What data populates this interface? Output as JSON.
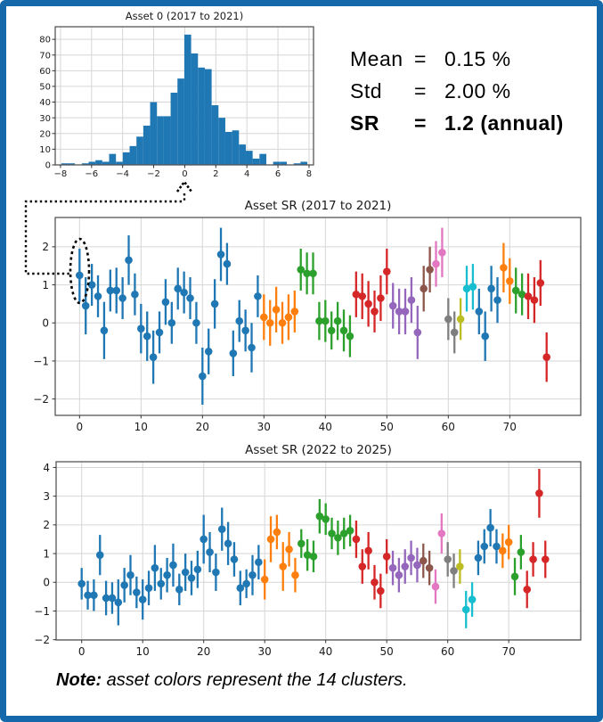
{
  "frame": {
    "border_color": "#1568a9"
  },
  "stats": {
    "rows": [
      {
        "label": "Mean",
        "eq": "=",
        "value": "0.15 %"
      },
      {
        "label": "Std",
        "eq": "=",
        "value": "2.00 %"
      },
      {
        "label": "SR",
        "eq": "=",
        "value": "1.2 (annual)"
      }
    ]
  },
  "note": {
    "prefix": "Note:",
    "text": " asset colors represent the 14 clusters."
  },
  "annotation": {
    "circled_asset": 0,
    "meaning": "dotted arrow links circled asset 0 in SR plot to its return histogram"
  },
  "cluster_palette": [
    "#1f77b4",
    "#ff7f0e",
    "#2ca02c",
    "#d62728",
    "#9467bd",
    "#8c564b",
    "#e377c2",
    "#7f7f7f",
    "#bcbd22",
    "#17becf",
    "#1f77b4",
    "#ff7f0e",
    "#2ca02c",
    "#d62728"
  ],
  "cluster_ranges": [
    [
      0,
      29
    ],
    [
      30,
      35
    ],
    [
      36,
      44
    ],
    [
      45,
      50
    ],
    [
      51,
      55
    ],
    [
      56,
      57
    ],
    [
      58,
      59
    ],
    [
      60,
      61
    ],
    [
      62,
      62
    ],
    [
      63,
      64
    ],
    [
      65,
      68
    ],
    [
      69,
      70
    ],
    [
      71,
      72
    ],
    [
      73,
      76
    ]
  ],
  "chart_data": [
    {
      "type": "bar",
      "id": "hist",
      "title": "Asset 0 (2017 to 2021)",
      "xlabel": "",
      "ylabel": "",
      "bar_color": "#1f77b4",
      "bin_start": -7.95,
      "bin_width": 0.44,
      "counts": [
        1,
        1,
        0,
        1,
        2,
        3,
        2,
        7,
        2,
        8,
        12,
        18,
        25,
        40,
        31,
        31,
        46,
        55,
        83,
        71,
        62,
        61,
        38,
        30,
        21,
        22,
        13,
        9,
        4,
        7,
        0,
        2,
        2,
        0,
        1,
        2
      ],
      "x_ticks": [
        -8,
        -6,
        -4,
        -2,
        0,
        2,
        4,
        6,
        8
      ],
      "y_ticks": [
        0,
        10,
        20,
        30,
        40,
        50,
        60,
        70,
        80
      ],
      "xlim": [
        -8.34,
        8.29
      ],
      "ylim": [
        0,
        88
      ],
      "grid": true
    },
    {
      "type": "scatter",
      "id": "sr_2017",
      "title": "Asset SR (2017 to 2021)",
      "xlabel": "",
      "ylabel": "",
      "marker": "o-with-vertical-error-bar",
      "x_is_asset_index": true,
      "x_ticks": [
        0,
        10,
        20,
        30,
        40,
        50,
        60,
        70
      ],
      "y_ticks": [
        -2,
        -1,
        0,
        1,
        2
      ],
      "xlim": [
        -3.96,
        81.55
      ],
      "ylim": [
        -2.43,
        2.77
      ],
      "grid": true,
      "points_y_err": [
        [
          1.25,
          0.7
        ],
        [
          0.45,
          0.75
        ],
        [
          1.0,
          0.55
        ],
        [
          0.7,
          0.55
        ],
        [
          -0.2,
          0.75
        ],
        [
          0.85,
          0.55
        ],
        [
          0.85,
          0.6
        ],
        [
          0.65,
          0.55
        ],
        [
          1.65,
          0.65
        ],
        [
          0.75,
          0.55
        ],
        [
          -0.15,
          0.65
        ],
        [
          -0.35,
          0.65
        ],
        [
          -0.9,
          0.7
        ],
        [
          -0.25,
          0.55
        ],
        [
          0.55,
          0.6
        ],
        [
          0.0,
          0.55
        ],
        [
          0.9,
          0.55
        ],
        [
          0.8,
          0.55
        ],
        [
          0.65,
          0.55
        ],
        [
          0.0,
          0.55
        ],
        [
          -1.4,
          0.75
        ],
        [
          -0.75,
          0.6
        ],
        [
          0.5,
          0.65
        ],
        [
          1.8,
          0.7
        ],
        [
          1.55,
          0.55
        ],
        [
          -0.8,
          0.6
        ],
        [
          0.05,
          0.55
        ],
        [
          -0.2,
          0.55
        ],
        [
          -0.65,
          0.65
        ],
        [
          0.7,
          0.55
        ],
        [
          0.15,
          0.6
        ],
        [
          0.0,
          0.6
        ],
        [
          0.35,
          0.6
        ],
        [
          0.0,
          0.55
        ],
        [
          0.15,
          0.6
        ],
        [
          0.3,
          0.55
        ],
        [
          1.4,
          0.55
        ],
        [
          1.3,
          0.55
        ],
        [
          1.3,
          0.55
        ],
        [
          0.05,
          0.5
        ],
        [
          0.05,
          0.55
        ],
        [
          -0.2,
          0.5
        ],
        [
          0.05,
          0.5
        ],
        [
          -0.2,
          0.55
        ],
        [
          -0.35,
          0.55
        ],
        [
          0.75,
          0.6
        ],
        [
          0.7,
          0.6
        ],
        [
          0.5,
          0.6
        ],
        [
          0.3,
          0.55
        ],
        [
          0.65,
          0.6
        ],
        [
          1.35,
          0.6
        ],
        [
          0.45,
          0.6
        ],
        [
          0.3,
          0.6
        ],
        [
          0.3,
          0.6
        ],
        [
          0.6,
          0.6
        ],
        [
          -0.25,
          0.7
        ],
        [
          0.9,
          0.6
        ],
        [
          1.4,
          0.6
        ],
        [
          1.55,
          0.6
        ],
        [
          1.85,
          0.65
        ],
        [
          0.1,
          0.55
        ],
        [
          -0.25,
          0.55
        ],
        [
          0.1,
          0.55
        ],
        [
          0.9,
          0.6
        ],
        [
          0.95,
          0.6
        ],
        [
          0.3,
          0.6
        ],
        [
          -0.35,
          0.65
        ],
        [
          0.9,
          0.6
        ],
        [
          0.6,
          0.6
        ],
        [
          1.45,
          0.65
        ],
        [
          1.1,
          0.6
        ],
        [
          0.85,
          0.6
        ],
        [
          0.75,
          0.55
        ],
        [
          0.7,
          0.6
        ],
        [
          0.6,
          0.6
        ],
        [
          1.05,
          0.6
        ],
        [
          -0.9,
          0.65
        ]
      ]
    },
    {
      "type": "scatter",
      "id": "sr_2022",
      "title": "Asset SR (2022 to 2025)",
      "xlabel": "",
      "ylabel": "",
      "marker": "o-with-vertical-error-bar",
      "x_is_asset_index": true,
      "x_ticks": [
        0,
        10,
        20,
        30,
        40,
        50,
        60,
        70
      ],
      "y_ticks": [
        -2,
        -1,
        0,
        1,
        2,
        3,
        4
      ],
      "xlim": [
        -4.19,
        81.8
      ],
      "ylim": [
        -2.01,
        4.2
      ],
      "grid": true,
      "points_y_err": [
        [
          -0.05,
          0.55
        ],
        [
          -0.45,
          0.5
        ],
        [
          -0.45,
          0.55
        ],
        [
          0.95,
          0.7
        ],
        [
          -0.55,
          0.6
        ],
        [
          -0.55,
          0.55
        ],
        [
          -0.7,
          0.8
        ],
        [
          -0.1,
          0.6
        ],
        [
          0.25,
          0.7
        ],
        [
          -0.35,
          0.55
        ],
        [
          -0.6,
          0.7
        ],
        [
          -0.2,
          0.6
        ],
        [
          0.5,
          0.8
        ],
        [
          -0.05,
          0.55
        ],
        [
          0.25,
          0.6
        ],
        [
          0.6,
          0.75
        ],
        [
          -0.25,
          0.55
        ],
        [
          0.35,
          0.65
        ],
        [
          0.15,
          0.6
        ],
        [
          0.45,
          0.65
        ],
        [
          1.5,
          0.85
        ],
        [
          1.05,
          0.7
        ],
        [
          0.35,
          0.65
        ],
        [
          1.85,
          0.75
        ],
        [
          1.35,
          0.75
        ],
        [
          0.8,
          0.6
        ],
        [
          -0.2,
          0.6
        ],
        [
          -0.05,
          0.5
        ],
        [
          0.25,
          0.7
        ],
        [
          0.7,
          0.6
        ],
        [
          0.1,
          0.7
        ],
        [
          1.5,
          0.8
        ],
        [
          1.75,
          0.6
        ],
        [
          0.55,
          0.85
        ],
        [
          1.15,
          0.6
        ],
        [
          0.25,
          0.6
        ],
        [
          1.35,
          0.5
        ],
        [
          0.95,
          0.55
        ],
        [
          0.9,
          0.55
        ],
        [
          2.3,
          0.6
        ],
        [
          2.2,
          0.55
        ],
        [
          1.7,
          0.55
        ],
        [
          1.55,
          0.6
        ],
        [
          1.7,
          0.55
        ],
        [
          1.8,
          0.55
        ],
        [
          1.5,
          0.65
        ],
        [
          0.55,
          0.6
        ],
        [
          1.1,
          0.65
        ],
        [
          0.0,
          0.6
        ],
        [
          -0.3,
          0.6
        ],
        [
          0.9,
          0.6
        ],
        [
          0.5,
          0.6
        ],
        [
          0.25,
          0.6
        ],
        [
          0.55,
          0.6
        ],
        [
          0.85,
          0.6
        ],
        [
          0.6,
          0.6
        ],
        [
          0.75,
          0.6
        ],
        [
          0.5,
          0.6
        ],
        [
          -0.15,
          0.6
        ],
        [
          1.7,
          0.7
        ],
        [
          0.8,
          0.6
        ],
        [
          0.4,
          0.6
        ],
        [
          0.55,
          0.6
        ],
        [
          -0.95,
          0.65
        ],
        [
          -0.6,
          0.6
        ],
        [
          0.85,
          0.6
        ],
        [
          1.25,
          0.6
        ],
        [
          1.9,
          0.65
        ],
        [
          1.25,
          0.6
        ],
        [
          1.1,
          0.6
        ],
        [
          1.4,
          0.6
        ],
        [
          0.2,
          0.65
        ],
        [
          1.05,
          0.6
        ],
        [
          -0.25,
          0.65
        ],
        [
          0.8,
          0.6
        ],
        [
          3.1,
          0.85
        ],
        [
          0.8,
          0.65
        ]
      ]
    }
  ]
}
